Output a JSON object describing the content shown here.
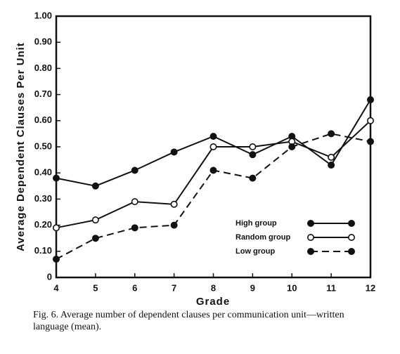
{
  "chart_data": {
    "type": "line",
    "y_label": "Average Dependent Clauses Per Unit",
    "x_label": "Grade",
    "caption": "Fig. 6. Average number of dependent clauses per communication unit—written language (mean).",
    "x": [
      4,
      5,
      6,
      7,
      8,
      9,
      10,
      11,
      12
    ],
    "xlim": [
      4,
      12
    ],
    "xticks": [
      4,
      5,
      6,
      7,
      8,
      9,
      10,
      11,
      12
    ],
    "ylim": [
      0,
      1
    ],
    "yticks": [
      0,
      {
        "value": 0.1,
        "label": "0.10"
      },
      {
        "value": 0.2,
        "label": "0.20"
      },
      {
        "value": 0.3,
        "label": "0.30"
      },
      {
        "value": 0.4,
        "label": "0.40"
      },
      {
        "value": 0.5,
        "label": "0.50"
      },
      {
        "value": 0.6,
        "label": "0.60"
      },
      {
        "value": 0.7,
        "label": "0.70"
      },
      {
        "value": 0.8,
        "label": "0.80"
      },
      {
        "value": 0.9,
        "label": "0.90"
      },
      {
        "value": 1,
        "label": "1.00"
      }
    ],
    "grid": false,
    "legend": "lower right",
    "series": [
      {
        "name": "High group",
        "color": "#111111",
        "marker": "filled",
        "linestyle": "solid",
        "values": [
          0.38,
          0.35,
          0.41,
          0.48,
          0.54,
          0.47,
          0.54,
          0.43,
          0.68
        ]
      },
      {
        "name": "Random group",
        "color": "#111111",
        "marker": "open",
        "linestyle": "solid",
        "values": [
          0.19,
          0.22,
          0.29,
          0.28,
          0.5,
          0.5,
          0.52,
          0.46,
          0.6
        ]
      },
      {
        "name": "Low group",
        "color": "#111111",
        "marker": "filled",
        "linestyle": "dashed",
        "values": [
          0.07,
          0.15,
          0.19,
          0.2,
          0.41,
          0.38,
          0.5,
          0.55,
          0.52
        ]
      }
    ]
  }
}
